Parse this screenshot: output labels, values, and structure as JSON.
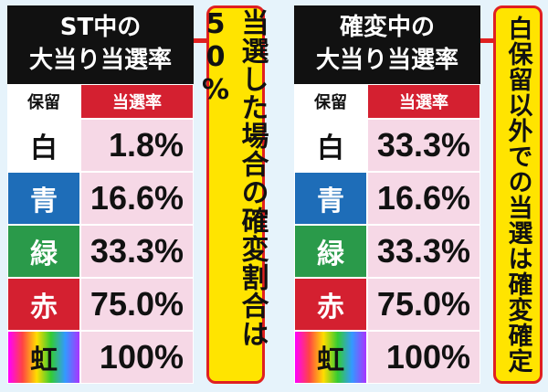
{
  "panels": [
    {
      "title": [
        "ST中の",
        "大当り当選率"
      ],
      "header": [
        "保留",
        "当選率"
      ],
      "rows": [
        [
          "白",
          "1.8%"
        ],
        [
          "青",
          "16.6%"
        ],
        [
          "緑",
          "33.3%"
        ],
        [
          "赤",
          "75.0%"
        ],
        [
          "虹",
          "100%"
        ]
      ],
      "callout": "当選した場合の確変割合は50%"
    },
    {
      "title": [
        "確変中の",
        "大当り当選率"
      ],
      "header": [
        "保留",
        "当選率"
      ],
      "rows": [
        [
          "白",
          "33.3%"
        ],
        [
          "青",
          "16.6%"
        ],
        [
          "緑",
          "33.3%"
        ],
        [
          "赤",
          "75.0%"
        ],
        [
          "虹",
          "100%"
        ]
      ],
      "callout": "白保留以外での当選は確変確定"
    }
  ]
}
